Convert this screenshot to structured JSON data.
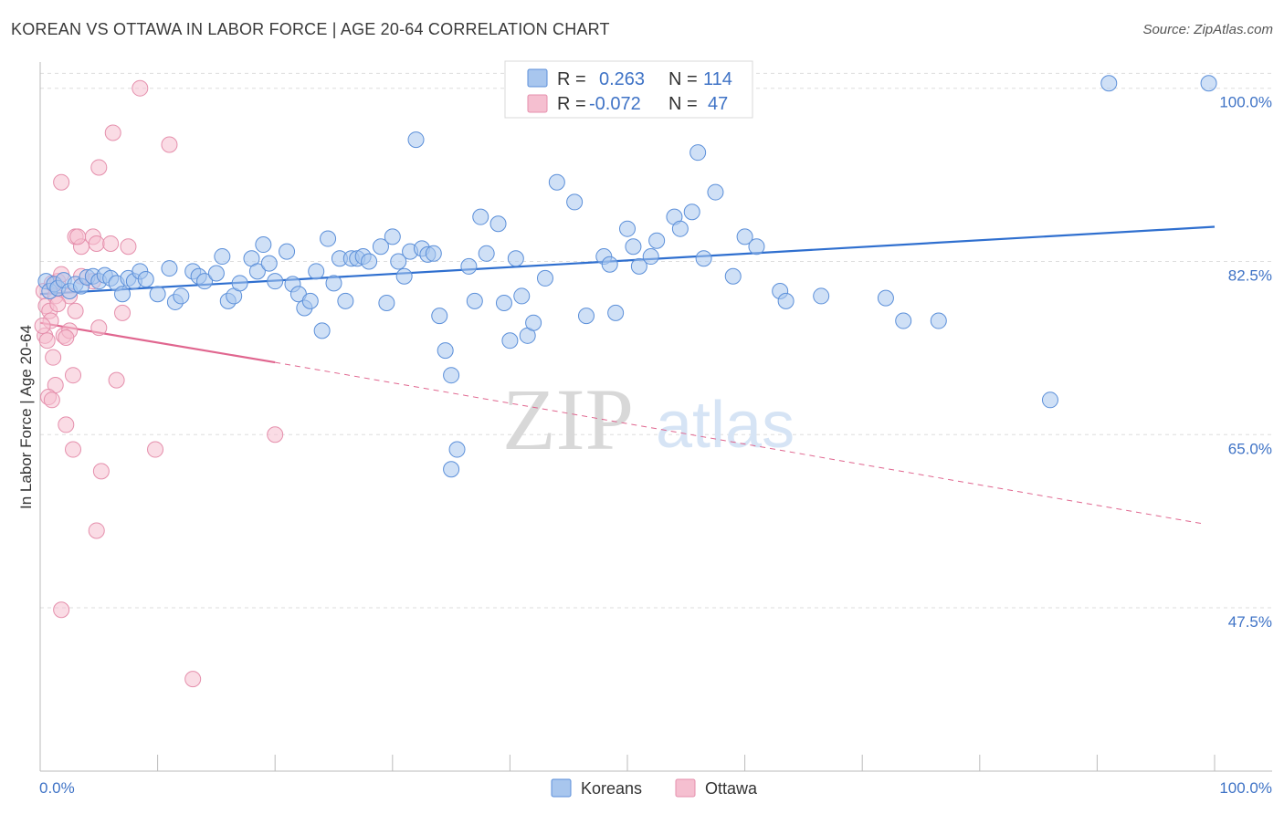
{
  "title": "KOREAN VS OTTAWA IN LABOR FORCE | AGE 20-64 CORRELATION CHART",
  "source": "Source: ZipAtlas.com",
  "watermark": {
    "zip": "ZIP",
    "atlas": "atlas"
  },
  "legend": {
    "r_label": "R =",
    "n_label": "N =",
    "koreans": {
      "r": "0.263",
      "n": "114"
    },
    "ottawa": {
      "r": "-0.072",
      "n": "47"
    }
  },
  "bottom_legend": [
    "Koreans",
    "Ottawa"
  ],
  "colors": {
    "koreans": "#5b8fd9",
    "koreans_fill": "#a8c6ee",
    "koreans_line": "#2f6fcf",
    "ottawa": "#e58fac",
    "ottawa_fill": "#f5bfd0",
    "ottawa_line": "#e0668f",
    "axis_label": "#3f73c6",
    "grid": "#dddddd"
  },
  "chart_data": {
    "type": "scatter",
    "title": "KOREAN VS OTTAWA IN LABOR FORCE | AGE 20-64 CORRELATION CHART",
    "xlabel": "",
    "ylabel": "In Labor Force | Age 20-64",
    "xlim": [
      0,
      100
    ],
    "ylim": [
      31,
      102
    ],
    "x_tick_labels": [
      "0.0%",
      "100.0%"
    ],
    "y_ticks": [
      47.5,
      65.0,
      82.5,
      100.0
    ],
    "y_tick_labels": [
      "47.5%",
      "65.0%",
      "82.5%",
      "100.0%"
    ],
    "grid": true,
    "legend_position": "top-center",
    "series": [
      {
        "name": "Koreans",
        "r": 0.263,
        "n": 114,
        "trend": {
          "x0": 0,
          "y0": 79.2,
          "x1": 100,
          "y1": 86.0
        },
        "points": [
          [
            0.5,
            80.5
          ],
          [
            0.8,
            79.5
          ],
          [
            1.2,
            80.2
          ],
          [
            1.5,
            79.8
          ],
          [
            2.0,
            80.6
          ],
          [
            2.5,
            79.5
          ],
          [
            3.0,
            80.2
          ],
          [
            3.5,
            80.0
          ],
          [
            4.0,
            80.9
          ],
          [
            4.5,
            81.0
          ],
          [
            5.0,
            80.5
          ],
          [
            5.5,
            81.1
          ],
          [
            6.0,
            80.8
          ],
          [
            6.5,
            80.3
          ],
          [
            7.0,
            79.2
          ],
          [
            7.5,
            80.8
          ],
          [
            8.0,
            80.5
          ],
          [
            8.5,
            81.5
          ],
          [
            9.0,
            80.7
          ],
          [
            10.0,
            79.2
          ],
          [
            11.0,
            81.8
          ],
          [
            11.5,
            78.4
          ],
          [
            12.0,
            79.0
          ],
          [
            13.0,
            81.5
          ],
          [
            13.5,
            81.0
          ],
          [
            14.0,
            80.5
          ],
          [
            15.0,
            81.3
          ],
          [
            15.5,
            83.0
          ],
          [
            16.0,
            78.5
          ],
          [
            16.5,
            79.0
          ],
          [
            17.0,
            80.3
          ],
          [
            18.0,
            82.8
          ],
          [
            18.5,
            81.5
          ],
          [
            19.0,
            84.2
          ],
          [
            19.5,
            82.3
          ],
          [
            20.0,
            80.5
          ],
          [
            21.0,
            83.5
          ],
          [
            21.5,
            80.2
          ],
          [
            22.0,
            79.2
          ],
          [
            22.5,
            77.8
          ],
          [
            23.0,
            78.5
          ],
          [
            23.5,
            81.5
          ],
          [
            24.0,
            75.5
          ],
          [
            24.5,
            84.8
          ],
          [
            25.0,
            80.3
          ],
          [
            25.5,
            82.8
          ],
          [
            26.0,
            78.5
          ],
          [
            26.5,
            82.8
          ],
          [
            27.0,
            82.8
          ],
          [
            27.5,
            83.0
          ],
          [
            28.0,
            82.5
          ],
          [
            29.0,
            84.0
          ],
          [
            29.5,
            78.3
          ],
          [
            30.0,
            85.0
          ],
          [
            30.5,
            82.5
          ],
          [
            31.0,
            81.0
          ],
          [
            31.5,
            83.5
          ],
          [
            32.0,
            94.8
          ],
          [
            32.5,
            83.8
          ],
          [
            33.0,
            83.2
          ],
          [
            33.5,
            83.3
          ],
          [
            34.0,
            77.0
          ],
          [
            34.5,
            73.5
          ],
          [
            35.0,
            71.0
          ],
          [
            35.5,
            63.5
          ],
          [
            35.0,
            61.5
          ],
          [
            36.5,
            82.0
          ],
          [
            37.0,
            78.5
          ],
          [
            37.5,
            87.0
          ],
          [
            38.0,
            83.3
          ],
          [
            39.0,
            86.3
          ],
          [
            39.5,
            78.3
          ],
          [
            40.0,
            74.5
          ],
          [
            40.5,
            82.8
          ],
          [
            41.0,
            79.0
          ],
          [
            41.5,
            75.0
          ],
          [
            42.0,
            76.3
          ],
          [
            43.0,
            80.8
          ],
          [
            44.0,
            90.5
          ],
          [
            45.5,
            88.5
          ],
          [
            46.5,
            77.0
          ],
          [
            48.0,
            83.0
          ],
          [
            48.5,
            82.2
          ],
          [
            49.0,
            77.3
          ],
          [
            50.0,
            85.8
          ],
          [
            50.5,
            84.0
          ],
          [
            51.0,
            82.0
          ],
          [
            52.0,
            83.0
          ],
          [
            52.5,
            84.6
          ],
          [
            54.0,
            87.0
          ],
          [
            54.5,
            85.8
          ],
          [
            55.5,
            87.5
          ],
          [
            56.0,
            93.5
          ],
          [
            56.5,
            82.8
          ],
          [
            57.5,
            89.5
          ],
          [
            59.0,
            81.0
          ],
          [
            60.0,
            85.0
          ],
          [
            61.0,
            84.0
          ],
          [
            63.0,
            79.5
          ],
          [
            63.5,
            78.5
          ],
          [
            66.5,
            79.0
          ],
          [
            72.0,
            78.8
          ],
          [
            73.5,
            76.5
          ],
          [
            76.5,
            76.5
          ],
          [
            86.0,
            68.5
          ],
          [
            91.0,
            100.5
          ],
          [
            99.5,
            100.5
          ],
          [
            40.8,
            100.3
          ]
        ]
      },
      {
        "name": "Ottawa",
        "r": -0.072,
        "n": 47,
        "trend_solid": {
          "x0": 0,
          "y0": 76.3,
          "x1": 20,
          "y1": 72.3
        },
        "trend_dashed": {
          "x0": 20,
          "y0": 72.3,
          "x1": 99,
          "y1": 56.0
        },
        "points": [
          [
            0.3,
            79.5
          ],
          [
            0.5,
            78.0
          ],
          [
            0.8,
            77.5
          ],
          [
            1.0,
            80.3
          ],
          [
            1.3,
            79.0
          ],
          [
            1.5,
            80.5
          ],
          [
            1.8,
            81.2
          ],
          [
            0.4,
            75.0
          ],
          [
            0.6,
            74.5
          ],
          [
            0.9,
            76.5
          ],
          [
            1.1,
            72.8
          ],
          [
            1.3,
            70.0
          ],
          [
            0.7,
            68.8
          ],
          [
            1.0,
            68.5
          ],
          [
            2.0,
            75.0
          ],
          [
            2.5,
            75.5
          ],
          [
            3.0,
            77.5
          ],
          [
            2.8,
            71.0
          ],
          [
            3.0,
            85.0
          ],
          [
            3.5,
            84.0
          ],
          [
            3.2,
            85.0
          ],
          [
            4.5,
            85.0
          ],
          [
            4.8,
            84.3
          ],
          [
            5.0,
            75.8
          ],
          [
            4.5,
            80.5
          ],
          [
            5.0,
            92.0
          ],
          [
            6.2,
            95.5
          ],
          [
            6.0,
            84.3
          ],
          [
            6.5,
            70.5
          ],
          [
            7.0,
            77.3
          ],
          [
            7.5,
            84.0
          ],
          [
            8.5,
            100.0
          ],
          [
            11.0,
            94.3
          ],
          [
            1.8,
            90.5
          ],
          [
            2.2,
            66.0
          ],
          [
            2.8,
            63.5
          ],
          [
            5.2,
            61.3
          ],
          [
            4.8,
            55.3
          ],
          [
            9.8,
            63.5
          ],
          [
            20.0,
            65.0
          ],
          [
            1.8,
            47.3
          ],
          [
            13.0,
            40.3
          ],
          [
            2.5,
            79.0
          ],
          [
            3.5,
            81.0
          ],
          [
            0.2,
            76.0
          ],
          [
            1.5,
            78.2
          ],
          [
            2.2,
            74.8
          ]
        ]
      }
    ]
  }
}
